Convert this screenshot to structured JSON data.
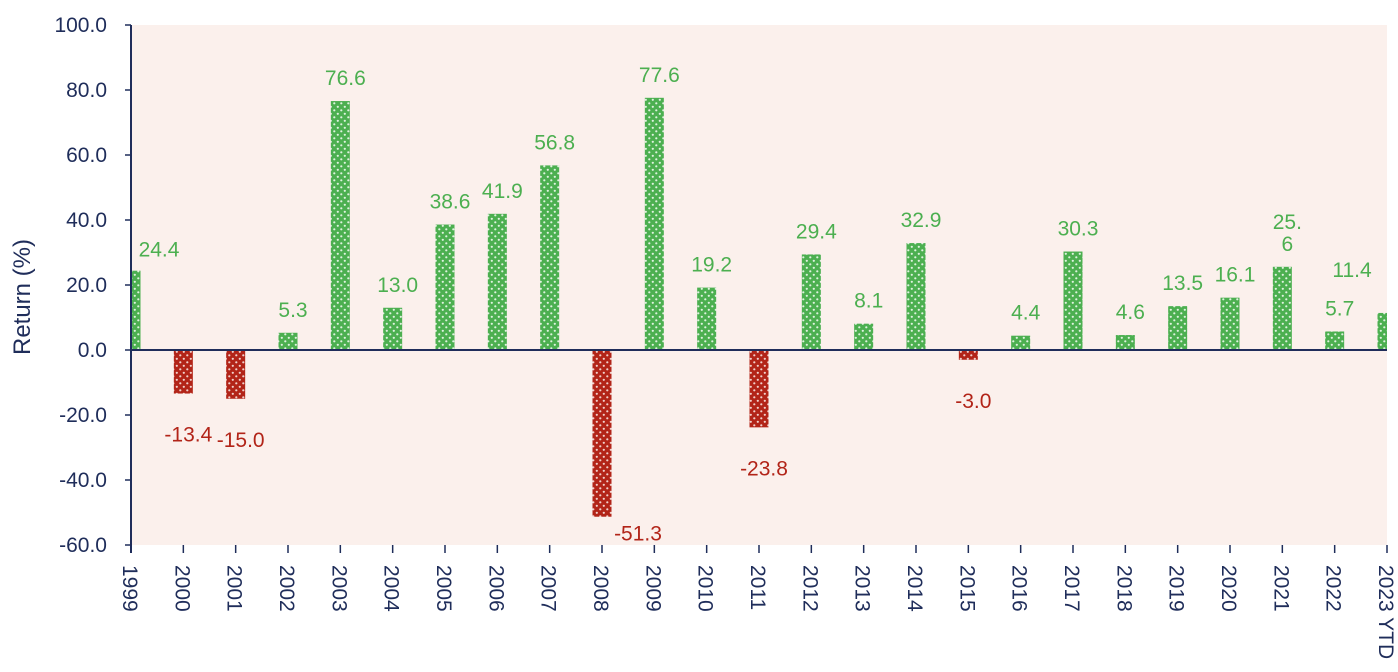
{
  "chart_data": {
    "type": "bar",
    "title": "",
    "xlabel": "",
    "ylabel": "Return (%)",
    "ylim": [
      -60,
      100
    ],
    "yticks": [
      "100.0",
      "80.0",
      "60.0",
      "40.0",
      "20.0",
      "0.0",
      "-20.0",
      "-40.0",
      "-60.0"
    ],
    "ytick_values": [
      100,
      80,
      60,
      40,
      20,
      0,
      -20,
      -40,
      -60
    ],
    "categories": [
      "1999",
      "2000",
      "2001",
      "2002",
      "2003",
      "2004",
      "2005",
      "2006",
      "2007",
      "2008",
      "2009",
      "2010",
      "2011",
      "2012",
      "2013",
      "2014",
      "2015",
      "2016",
      "2017",
      "2018",
      "2019",
      "2020",
      "2021",
      "2022",
      "2023 YTD"
    ],
    "values": [
      24.4,
      -13.4,
      -15.0,
      5.3,
      76.6,
      13.0,
      38.6,
      41.9,
      56.8,
      -51.3,
      77.6,
      19.2,
      -23.8,
      29.4,
      8.1,
      32.9,
      -3.0,
      4.4,
      30.3,
      4.6,
      13.5,
      16.1,
      25.6,
      5.7,
      11.4
    ],
    "data_labels": [
      "24.4",
      "-13.4",
      "-15.0",
      "5.3",
      "76.6",
      "13.0",
      "38.6",
      "41.9",
      "56.8",
      "-51.3",
      "77.6",
      "19.2",
      "-23.8",
      "29.4",
      "8.1",
      "32.9",
      "-3.0",
      "4.4",
      "30.3",
      "4.6",
      "13.5",
      "16.1",
      "25.\n6",
      "5.7",
      "11.4"
    ],
    "grid": false,
    "legend": "none",
    "colors": {
      "positive": "#4caf50",
      "negative": "#b22418",
      "plot_background": "#fbf0ec",
      "axis": "#1f2d5a",
      "text": "#1f2d5a"
    }
  }
}
